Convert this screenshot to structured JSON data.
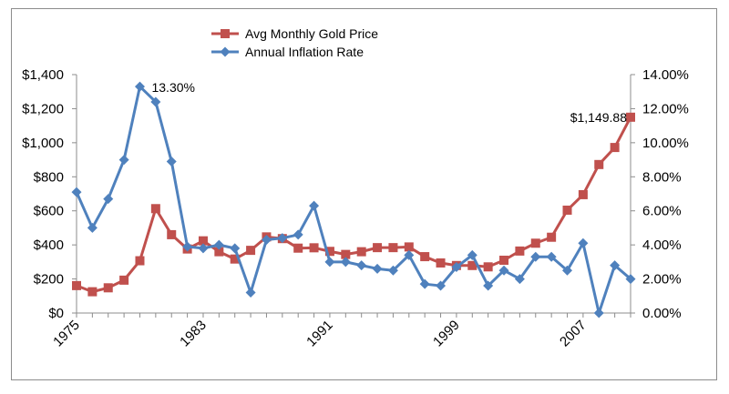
{
  "chart_data": {
    "type": "line",
    "x": [
      1975,
      1976,
      1977,
      1978,
      1979,
      1980,
      1981,
      1982,
      1983,
      1984,
      1985,
      1986,
      1987,
      1988,
      1989,
      1990,
      1991,
      1992,
      1993,
      1994,
      1995,
      1996,
      1997,
      1998,
      1999,
      2000,
      2001,
      2002,
      2003,
      2004,
      2005,
      2006,
      2007,
      2008,
      2009,
      2010
    ],
    "x_tick_labels": [
      "1975",
      "1983",
      "1991",
      "1999",
      "2007"
    ],
    "x_tick_values": [
      1975,
      1983,
      1991,
      1999,
      2007
    ],
    "series": [
      {
        "name": "Avg Monthly Gold Price",
        "axis": "left",
        "color": "#c0504d",
        "marker": "square",
        "values": [
          161,
          125,
          148,
          193,
          307,
          613,
          460,
          376,
          424,
          360,
          317,
          368,
          447,
          437,
          381,
          383,
          362,
          344,
          360,
          384,
          384,
          388,
          331,
          294,
          279,
          279,
          271,
          310,
          364,
          410,
          445,
          604,
          695,
          872,
          972,
          1149.88
        ]
      },
      {
        "name": "Annual Inflation Rate",
        "axis": "right",
        "color": "#4f81bd",
        "marker": "diamond",
        "values": [
          7.1,
          5.0,
          6.7,
          9.0,
          13.3,
          12.4,
          8.9,
          3.9,
          3.8,
          4.0,
          3.8,
          1.2,
          4.3,
          4.4,
          4.6,
          6.3,
          3.0,
          3.0,
          2.8,
          2.6,
          2.5,
          3.4,
          1.7,
          1.6,
          2.7,
          3.4,
          1.6,
          2.5,
          2.0,
          3.3,
          3.3,
          2.5,
          4.1,
          0.0,
          2.8,
          2.0
        ]
      }
    ],
    "y_left": {
      "ylim": [
        0,
        1400
      ],
      "ticks": [
        "$0",
        "$200",
        "$400",
        "$600",
        "$800",
        "$1,000",
        "$1,200",
        "$1,400"
      ],
      "tick_values": [
        0,
        200,
        400,
        600,
        800,
        1000,
        1200,
        1400
      ]
    },
    "y_right": {
      "ylim": [
        0,
        14
      ],
      "ticks": [
        "0.00%",
        "2.00%",
        "4.00%",
        "6.00%",
        "8.00%",
        "10.00%",
        "12.00%",
        "14.00%"
      ],
      "tick_values": [
        0,
        2,
        4,
        6,
        8,
        10,
        12,
        14
      ]
    },
    "annotations": [
      {
        "series": "Annual Inflation Rate",
        "x": 1979,
        "text": "13.30%"
      },
      {
        "series": "Avg Monthly Gold Price",
        "x": 2010,
        "text": "$1,149.88"
      }
    ],
    "grid": false,
    "legend_position": "top-center"
  }
}
